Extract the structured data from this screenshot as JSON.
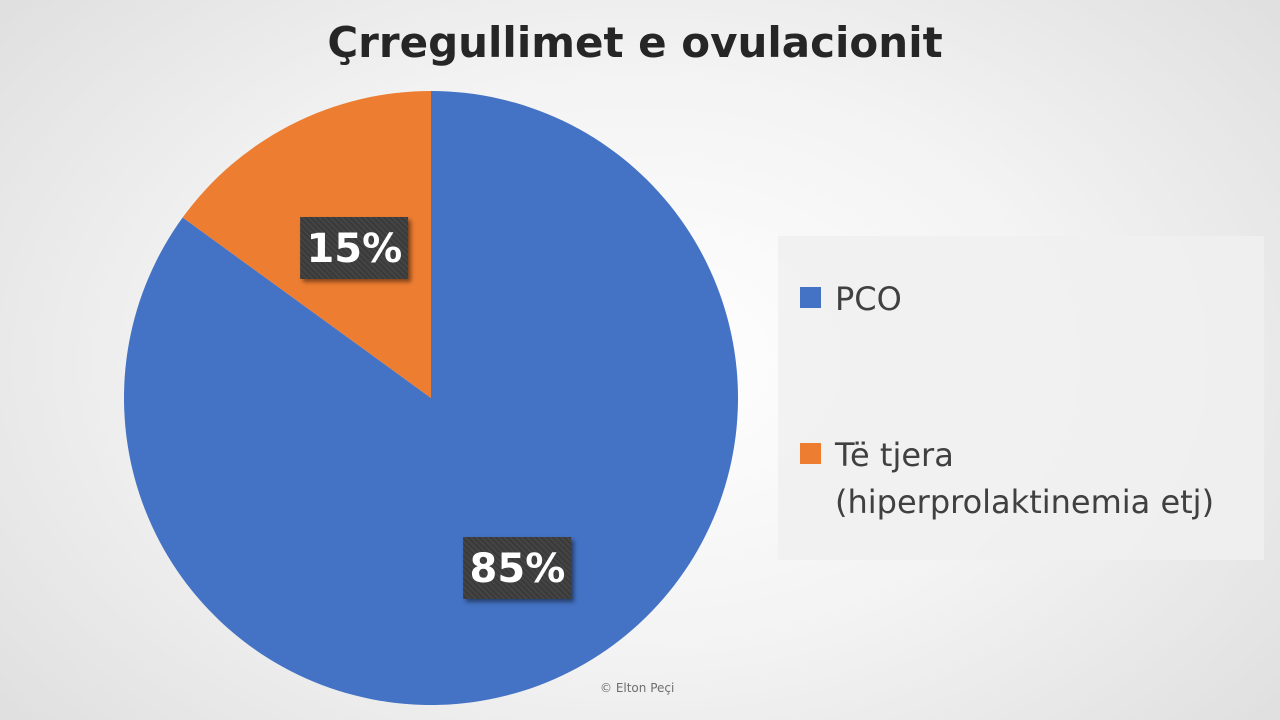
{
  "chart_data": {
    "type": "pie",
    "title": "Çrregullimet e ovulacionit",
    "slices": [
      {
        "name": "PCO",
        "value": 85,
        "label": "85%",
        "color": "#4472c4"
      },
      {
        "name": "Të tjera (hiperprolaktinemia etj)",
        "value": 15,
        "label": "15%",
        "color": "#ed7d31"
      }
    ],
    "legend_position": "right",
    "start_angle_degrees": 0,
    "direction": "clockwise"
  },
  "legend": {
    "items": [
      {
        "lines": [
          "PCO"
        ],
        "color": "#4472c4"
      },
      {
        "lines": [
          "Të tjera",
          "(hiperprolaktinemia etj)"
        ],
        "color": "#ed7d31"
      }
    ]
  },
  "footer": {
    "copyright": "© Elton Peçi"
  }
}
